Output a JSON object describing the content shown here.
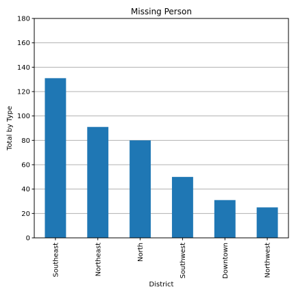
{
  "chart_data": {
    "type": "bar",
    "title": "Missing Person",
    "xlabel": "District",
    "ylabel": "Total by Type",
    "categories": [
      "Southeast",
      "Northeast",
      "North",
      "Southwest",
      "Downtown",
      "Northwest"
    ],
    "values": [
      131,
      91,
      80,
      50,
      31,
      25
    ],
    "ylim": [
      0,
      180
    ],
    "yticks": [
      "0",
      "20",
      "40",
      "60",
      "80",
      "100",
      "120",
      "140",
      "160",
      "180"
    ],
    "grid": "horizontal",
    "legend": "none",
    "bar_color": "#1f77b4",
    "grid_color": "#b0b0b0"
  }
}
